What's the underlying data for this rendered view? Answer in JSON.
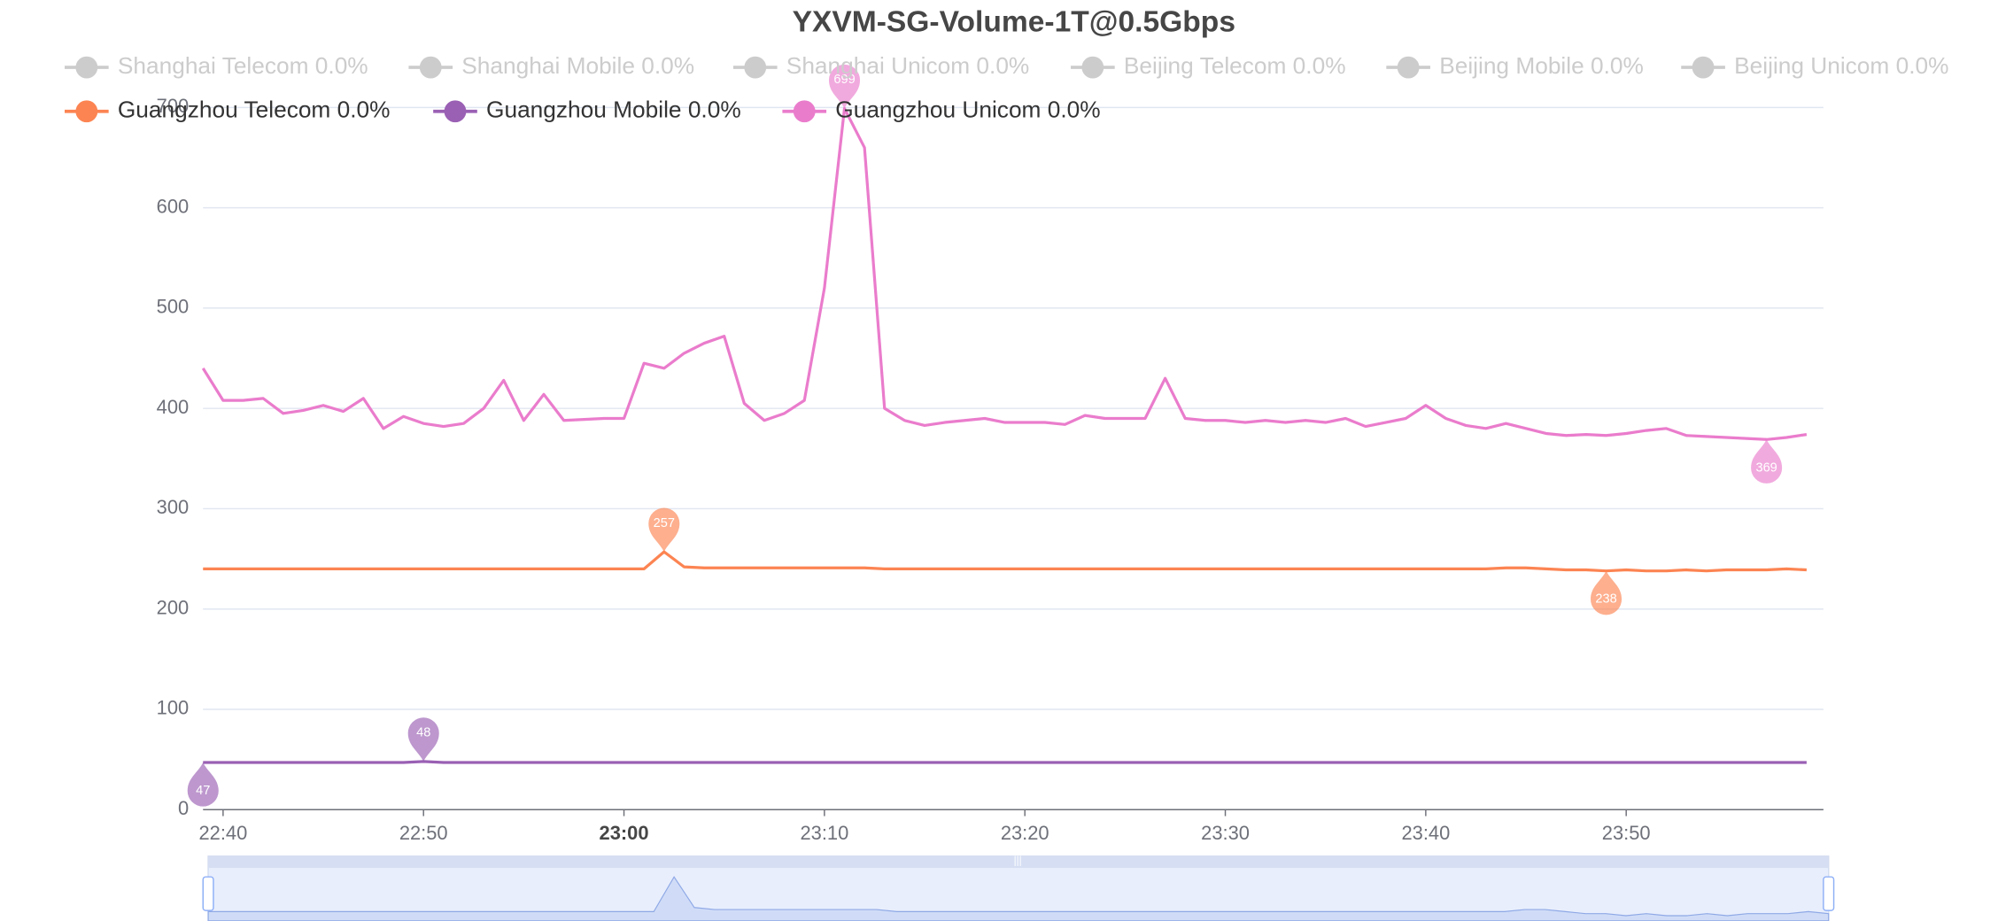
{
  "chart_data": {
    "type": "line",
    "title": "YXVM-SG-Volume-1T@0.5Gbps",
    "x": [
      "22:39",
      "22:40",
      "22:41",
      "22:42",
      "22:43",
      "22:44",
      "22:45",
      "22:46",
      "22:47",
      "22:48",
      "22:49",
      "22:50",
      "22:51",
      "22:52",
      "22:53",
      "22:54",
      "22:55",
      "22:56",
      "22:57",
      "22:58",
      "22:59",
      "23:00",
      "23:01",
      "23:02",
      "23:03",
      "23:04",
      "23:05",
      "23:06",
      "23:07",
      "23:08",
      "23:09",
      "23:10",
      "23:11",
      "23:12",
      "23:13",
      "23:14",
      "23:15",
      "23:16",
      "23:17",
      "23:18",
      "23:19",
      "23:20",
      "23:21",
      "23:22",
      "23:23",
      "23:24",
      "23:25",
      "23:26",
      "23:27",
      "23:28",
      "23:29",
      "23:30",
      "23:31",
      "23:32",
      "23:33",
      "23:34",
      "23:35",
      "23:36",
      "23:37",
      "23:38",
      "23:39",
      "23:40",
      "23:41",
      "23:42",
      "23:43",
      "23:44",
      "23:45",
      "23:46",
      "23:47",
      "23:48",
      "23:49",
      "23:50",
      "23:51",
      "23:52",
      "23:53",
      "23:54",
      "23:55",
      "23:56",
      "23:57",
      "23:58",
      "23:59"
    ],
    "xlim": [
      "22:39",
      "23:59"
    ],
    "xticks": [
      "22:40",
      "22:50",
      "23:00",
      "23:10",
      "23:20",
      "23:30",
      "23:40",
      "23:50"
    ],
    "ylim": [
      0,
      700
    ],
    "yticks": [
      0,
      100,
      200,
      300,
      400,
      500,
      600,
      700
    ],
    "grid": true,
    "series": [
      {
        "name": "Shanghai Telecom 0.0%",
        "color": "#cccccc",
        "selected": false
      },
      {
        "name": "Shanghai Mobile 0.0%",
        "color": "#cccccc",
        "selected": false
      },
      {
        "name": "Shanghai Unicom 0.0%",
        "color": "#cccccc",
        "selected": false
      },
      {
        "name": "Beijing Telecom 0.0%",
        "color": "#cccccc",
        "selected": false
      },
      {
        "name": "Beijing Mobile 0.0%",
        "color": "#cccccc",
        "selected": false
      },
      {
        "name": "Beijing Unicom 0.0%",
        "color": "#cccccc",
        "selected": false
      },
      {
        "name": "Guangzhou Telecom 0.0%",
        "color": "#fc8452",
        "selected": true,
        "values": [
          240,
          240,
          240,
          240,
          240,
          240,
          240,
          240,
          240,
          240,
          240,
          240,
          240,
          240,
          240,
          240,
          240,
          240,
          240,
          240,
          240,
          240,
          240,
          257,
          242,
          241,
          241,
          241,
          241,
          241,
          241,
          241,
          241,
          241,
          240,
          240,
          240,
          240,
          240,
          240,
          240,
          240,
          240,
          240,
          240,
          240,
          240,
          240,
          240,
          240,
          240,
          240,
          240,
          240,
          240,
          240,
          240,
          240,
          240,
          240,
          240,
          240,
          240,
          240,
          240,
          241,
          241,
          240,
          239,
          239,
          238,
          239,
          238,
          238,
          239,
          238,
          239,
          239,
          239,
          240,
          239
        ]
      },
      {
        "name": "Guangzhou Mobile 0.0%",
        "color": "#9a60b4",
        "selected": true,
        "values": [
          47,
          47,
          47,
          47,
          47,
          47,
          47,
          47,
          47,
          47,
          47,
          48,
          47,
          47,
          47,
          47,
          47,
          47,
          47,
          47,
          47,
          47,
          47,
          47,
          47,
          47,
          47,
          47,
          47,
          47,
          47,
          47,
          47,
          47,
          47,
          47,
          47,
          47,
          47,
          47,
          47,
          47,
          47,
          47,
          47,
          47,
          47,
          47,
          47,
          47,
          47,
          47,
          47,
          47,
          47,
          47,
          47,
          47,
          47,
          47,
          47,
          47,
          47,
          47,
          47,
          47,
          47,
          47,
          47,
          47,
          47,
          47,
          47,
          47,
          47,
          47,
          47,
          47,
          47,
          47,
          47
        ]
      },
      {
        "name": "Guangzhou Unicom 0.0%",
        "color": "#ea7ccc",
        "selected": true,
        "values": [
          440,
          408,
          408,
          410,
          395,
          398,
          403,
          397,
          410,
          380,
          392,
          385,
          382,
          385,
          400,
          428,
          388,
          414,
          388,
          389,
          390,
          390,
          445,
          440,
          455,
          465,
          472,
          405,
          388,
          395,
          408,
          520,
          699,
          660,
          400,
          388,
          383,
          386,
          388,
          390,
          386,
          386,
          386,
          384,
          393,
          390,
          390,
          390,
          430,
          390,
          388,
          388,
          386,
          388,
          386,
          388,
          386,
          390,
          382,
          386,
          390,
          403,
          390,
          383,
          380,
          385,
          380,
          375,
          373,
          374,
          373,
          375,
          378,
          380,
          373,
          372,
          371,
          370,
          369,
          371,
          374
        ]
      }
    ]
  }
}
